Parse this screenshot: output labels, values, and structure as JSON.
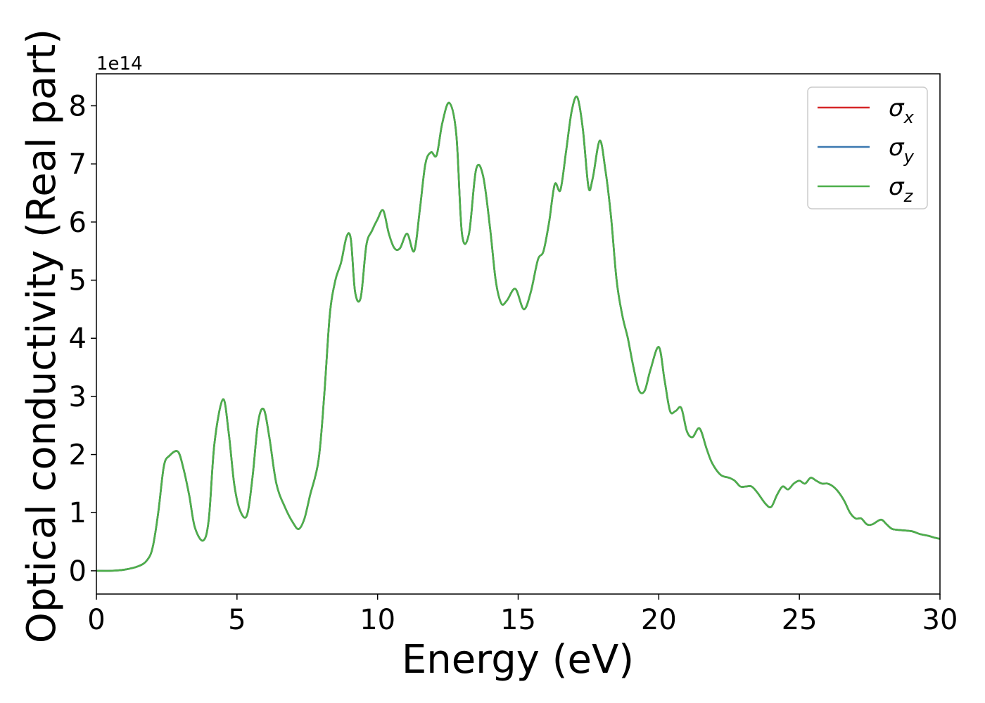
{
  "chart_data": {
    "type": "line",
    "xlabel": "Energy (eV)",
    "ylabel": "Optical conductivity (Real part)",
    "y_offset_label": "1e14",
    "xlim": [
      0,
      30
    ],
    "ylim": [
      -0.4,
      8.55
    ],
    "x_ticks": [
      0,
      5,
      10,
      15,
      20,
      25,
      30
    ],
    "y_ticks": [
      0,
      1,
      2,
      3,
      4,
      5,
      6,
      7,
      8
    ],
    "grid": false,
    "legend_position": "top-right",
    "colors": {
      "sigma_x": "#d62728",
      "sigma_y": "#3b78b0",
      "sigma_z": "#4daf4a"
    },
    "series": [
      {
        "name": "σx",
        "legend_symbol": "σ",
        "legend_sub": "x",
        "color": "#d62728"
      },
      {
        "name": "σy",
        "legend_symbol": "σ",
        "legend_sub": "y",
        "color": "#3b78b0"
      },
      {
        "name": "σz",
        "legend_symbol": "σ",
        "legend_sub": "z",
        "color": "#4daf4a"
      }
    ],
    "x": [
      0,
      0.5,
      1.0,
      1.5,
      1.8,
      2.0,
      2.2,
      2.4,
      2.6,
      2.9,
      3.1,
      3.3,
      3.5,
      3.8,
      4.0,
      4.2,
      4.5,
      4.7,
      4.9,
      5.1,
      5.35,
      5.55,
      5.75,
      5.95,
      6.15,
      6.4,
      6.7,
      7.0,
      7.2,
      7.4,
      7.6,
      7.9,
      8.1,
      8.3,
      8.5,
      8.7,
      8.9,
      9.05,
      9.2,
      9.4,
      9.6,
      9.8,
      10.0,
      10.2,
      10.4,
      10.6,
      10.8,
      11.05,
      11.3,
      11.5,
      11.7,
      11.9,
      12.1,
      12.3,
      12.55,
      12.8,
      13.0,
      13.25,
      13.5,
      13.75,
      14.0,
      14.2,
      14.4,
      14.6,
      14.9,
      15.2,
      15.45,
      15.7,
      15.9,
      16.1,
      16.3,
      16.5,
      16.7,
      16.9,
      17.1,
      17.3,
      17.5,
      17.65,
      17.9,
      18.1,
      18.3,
      18.5,
      18.7,
      18.9,
      19.1,
      19.3,
      19.5,
      19.7,
      20.0,
      20.2,
      20.4,
      20.6,
      20.8,
      21.0,
      21.2,
      21.45,
      21.7,
      21.9,
      22.2,
      22.5,
      22.7,
      22.9,
      23.1,
      23.3,
      23.5,
      23.8,
      24.0,
      24.2,
      24.4,
      24.6,
      24.8,
      25.0,
      25.2,
      25.4,
      25.6,
      25.8,
      26.0,
      26.2,
      26.4,
      26.6,
      26.8,
      27.0,
      27.2,
      27.4,
      27.6,
      27.9,
      28.1,
      28.3,
      28.6,
      29.0,
      29.3,
      29.6,
      29.8,
      30.0
    ],
    "y": [
      0.0,
      0.0,
      0.02,
      0.08,
      0.18,
      0.4,
      1.0,
      1.8,
      1.98,
      2.05,
      1.75,
      1.3,
      0.75,
      0.52,
      0.9,
      2.2,
      2.95,
      2.4,
      1.5,
      1.05,
      0.95,
      1.6,
      2.55,
      2.78,
      2.3,
      1.5,
      1.1,
      0.82,
      0.72,
      0.9,
      1.3,
      1.9,
      3.0,
      4.4,
      5.0,
      5.3,
      5.75,
      5.7,
      4.8,
      4.7,
      5.6,
      5.85,
      6.05,
      6.2,
      5.8,
      5.55,
      5.55,
      5.8,
      5.5,
      6.2,
      7.0,
      7.2,
      7.15,
      7.7,
      8.05,
      7.5,
      5.8,
      5.8,
      6.9,
      6.8,
      5.9,
      5.0,
      4.6,
      4.65,
      4.85,
      4.5,
      4.8,
      5.35,
      5.5,
      6.0,
      6.65,
      6.55,
      7.2,
      7.9,
      8.15,
      7.6,
      6.6,
      6.75,
      7.4,
      6.9,
      6.1,
      5.0,
      4.4,
      4.0,
      3.5,
      3.1,
      3.1,
      3.45,
      3.85,
      3.3,
      2.75,
      2.75,
      2.8,
      2.4,
      2.3,
      2.45,
      2.1,
      1.85,
      1.65,
      1.6,
      1.55,
      1.45,
      1.45,
      1.45,
      1.35,
      1.15,
      1.1,
      1.3,
      1.45,
      1.4,
      1.5,
      1.55,
      1.5,
      1.6,
      1.55,
      1.5,
      1.5,
      1.45,
      1.35,
      1.2,
      1.0,
      0.9,
      0.9,
      0.8,
      0.8,
      0.88,
      0.8,
      0.72,
      0.7,
      0.68,
      0.63,
      0.6,
      0.57,
      0.55
    ]
  }
}
